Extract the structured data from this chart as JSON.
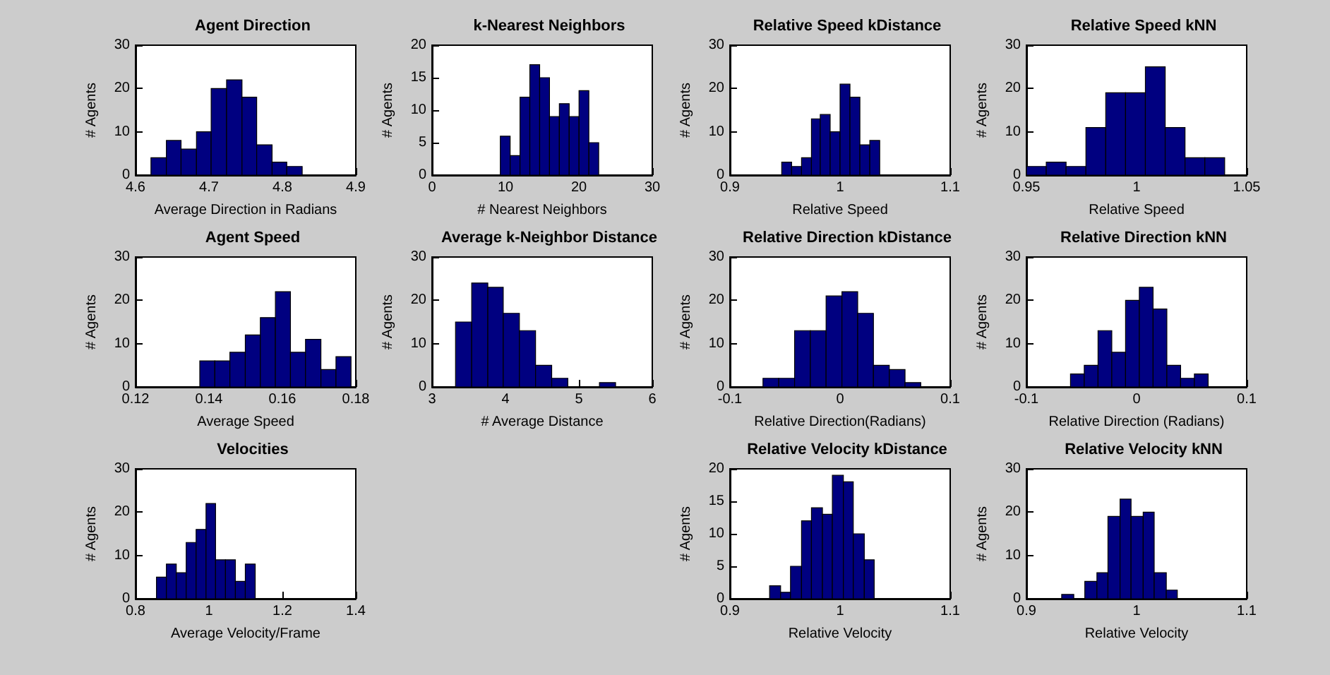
{
  "chart_data": [
    {
      "type": "histogram",
      "title": "Agent Direction",
      "xlabel": "Average Direction in Radians",
      "ylabel": "# Agents",
      "color": "#000080",
      "bins": [
        4.621,
        4.642,
        4.662,
        4.683,
        4.703,
        4.724,
        4.745,
        4.765,
        4.786,
        4.806,
        4.827
      ],
      "values": [
        4,
        8,
        6,
        10,
        20,
        22,
        18,
        7,
        3,
        2
      ],
      "xlim": [
        4.6,
        4.9
      ],
      "xticks": [
        4.6,
        4.7,
        4.8,
        4.9
      ],
      "ylim": [
        0,
        30
      ],
      "yticks": [
        0,
        10,
        20,
        30
      ],
      "grid": false
    },
    {
      "type": "histogram",
      "title": "k-Nearest Neighbors",
      "xlabel": "# Nearest Neighbors",
      "ylabel": "# Agents",
      "color": "#000080",
      "bins": [
        9.3,
        10.64,
        11.98,
        13.32,
        14.66,
        16,
        17.34,
        18.68,
        20.02,
        21.36,
        22.7
      ],
      "values": [
        6,
        3,
        12,
        17,
        15,
        9,
        11,
        9,
        13,
        5
      ],
      "xlim": [
        0,
        30
      ],
      "xticks": [
        0,
        10,
        20,
        30
      ],
      "ylim": [
        0,
        20
      ],
      "yticks": [
        0,
        5,
        10,
        15,
        20
      ],
      "grid": false
    },
    {
      "type": "histogram",
      "title": "Relative Speed kDistance",
      "xlabel": "Relative Speed",
      "ylabel": "# Agents",
      "color": "#000080",
      "bins": [
        0.947,
        0.956,
        0.965,
        0.974,
        0.982,
        0.991,
        1.0,
        1.009,
        1.018,
        1.027,
        1.036
      ],
      "values": [
        3,
        2,
        4,
        13,
        14,
        10,
        21,
        18,
        7,
        8
      ],
      "xlim": [
        0.9,
        1.1
      ],
      "xticks": [
        0.9,
        1,
        1.1
      ],
      "ylim": [
        0,
        30
      ],
      "yticks": [
        0,
        10,
        20,
        30
      ],
      "grid": false
    },
    {
      "type": "histogram",
      "title": "Relative Speed kNN",
      "xlabel": "Relative Speed",
      "ylabel": "# Agents",
      "color": "#000080",
      "bins": [
        0.95,
        0.959,
        0.968,
        0.977,
        0.986,
        0.995,
        1.004,
        1.013,
        1.022,
        1.031,
        1.04
      ],
      "values": [
        2,
        3,
        2,
        11,
        19,
        19,
        25,
        11,
        4,
        4
      ],
      "xlim": [
        0.95,
        1.05
      ],
      "xticks": [
        0.95,
        1,
        1.05
      ],
      "ylim": [
        0,
        30
      ],
      "yticks": [
        0,
        10,
        20,
        30
      ],
      "grid": false
    },
    {
      "type": "histogram",
      "title": "Agent Speed",
      "xlabel": "Average Speed",
      "ylabel": "# Agents",
      "color": "#000080",
      "bins": [
        0.1375,
        0.1416,
        0.1457,
        0.1499,
        0.154,
        0.1581,
        0.1622,
        0.1663,
        0.1705,
        0.1746,
        0.1787
      ],
      "values": [
        6,
        6,
        8,
        12,
        16,
        22,
        8,
        11,
        4,
        7
      ],
      "xlim": [
        0.12,
        0.18
      ],
      "xticks": [
        0.12,
        0.14,
        0.16,
        0.18
      ],
      "ylim": [
        0,
        30
      ],
      "yticks": [
        0,
        10,
        20,
        30
      ],
      "grid": false
    },
    {
      "type": "histogram",
      "title": "Average k-Neighbor Distance",
      "xlabel": "# Average Distance",
      "ylabel": "# Agents",
      "color": "#000080",
      "bins": [
        3.32,
        3.54,
        3.76,
        3.97,
        4.19,
        4.41,
        4.63,
        4.85,
        5.28,
        5.5
      ],
      "values": [
        15,
        24,
        23,
        17,
        13,
        5,
        2,
        0,
        1
      ],
      "xlim": [
        3,
        6
      ],
      "xticks": [
        3,
        4,
        5,
        6
      ],
      "ylim": [
        0,
        30
      ],
      "yticks": [
        0,
        10,
        20,
        30
      ],
      "grid": false
    },
    {
      "type": "histogram",
      "title": "Relative Direction kDistance",
      "xlabel": "Relative Direction(Radians)",
      "ylabel": "# Agents",
      "color": "#000080",
      "bins": [
        -0.07,
        -0.0557,
        -0.0413,
        -0.027,
        -0.0127,
        0.0017,
        0.016,
        0.0303,
        0.0447,
        0.059,
        0.0733
      ],
      "values": [
        2,
        2,
        13,
        13,
        21,
        22,
        17,
        5,
        4,
        1
      ],
      "xlim": [
        -0.1,
        0.1
      ],
      "xticks": [
        -0.1,
        0,
        0.1
      ],
      "ylim": [
        0,
        30
      ],
      "yticks": [
        0,
        10,
        20,
        30
      ],
      "grid": false
    },
    {
      "type": "histogram",
      "title": "Relative Direction kNN",
      "xlabel": "Relative Direction (Radians)",
      "ylabel": "# Agents",
      "color": "#000080",
      "bins": [
        -0.06,
        -0.0475,
        -0.035,
        -0.0225,
        -0.01,
        0.0025,
        0.015,
        0.0275,
        0.04,
        0.0525,
        0.065
      ],
      "values": [
        3,
        5,
        13,
        8,
        20,
        23,
        18,
        5,
        2,
        3
      ],
      "xlim": [
        -0.1,
        0.1
      ],
      "xticks": [
        -0.1,
        0,
        0.1
      ],
      "ylim": [
        0,
        30
      ],
      "yticks": [
        0,
        10,
        20,
        30
      ],
      "grid": false
    },
    {
      "type": "histogram",
      "title": "Velocities",
      "xlabel": "Average Velocity/Frame",
      "ylabel": "# Agents",
      "color": "#000080",
      "bins": [
        0.857,
        0.884,
        0.911,
        0.938,
        0.965,
        0.992,
        1.018,
        1.045,
        1.072,
        1.099,
        1.126
      ],
      "values": [
        5,
        8,
        6,
        13,
        16,
        22,
        9,
        9,
        4,
        8
      ],
      "xlim": [
        0.8,
        1.4
      ],
      "xticks": [
        0.8,
        1,
        1.2,
        1.4
      ],
      "ylim": [
        0,
        30
      ],
      "yticks": [
        0,
        10,
        20,
        30
      ],
      "grid": false
    },
    {
      "type": "histogram",
      "title": "Relative Velocity kDistance",
      "xlabel": "Relative Velocity",
      "ylabel": "# Agents",
      "color": "#000080",
      "bins": [
        0.936,
        0.946,
        0.955,
        0.965,
        0.974,
        0.984,
        0.993,
        1.003,
        1.012,
        1.022,
        1.031
      ],
      "values": [
        2,
        1,
        5,
        12,
        14,
        13,
        19,
        18,
        10,
        6
      ],
      "xlim": [
        0.9,
        1.1
      ],
      "xticks": [
        0.9,
        1,
        1.1
      ],
      "ylim": [
        0,
        20
      ],
      "yticks": [
        0,
        5,
        10,
        15,
        20
      ],
      "grid": false
    },
    {
      "type": "histogram",
      "title": "Relative Velocity kNN",
      "xlabel": "Relative Velocity",
      "ylabel": "# Agents",
      "color": "#000080",
      "bins": [
        0.932,
        0.943,
        0.953,
        0.964,
        0.974,
        0.985,
        0.995,
        1.006,
        1.016,
        1.027,
        1.037
      ],
      "values": [
        1,
        0,
        4,
        6,
        19,
        23,
        19,
        20,
        6,
        2
      ],
      "xlim": [
        0.9,
        1.1
      ],
      "xticks": [
        0.9,
        1,
        1.1
      ],
      "ylim": [
        0,
        30
      ],
      "yticks": [
        0,
        10,
        20,
        30
      ],
      "grid": false
    }
  ]
}
